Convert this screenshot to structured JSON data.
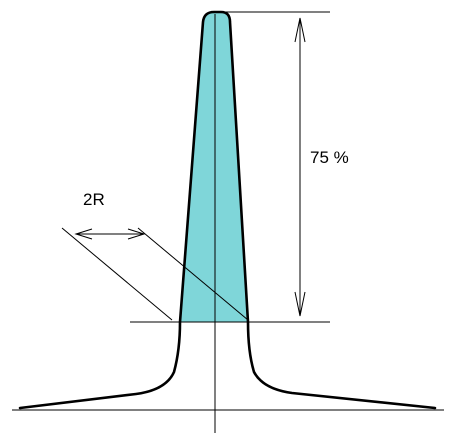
{
  "dimension_label": "75 %",
  "radius_label": "2R",
  "colors": {
    "fill": "#7fd6d9",
    "stroke": "#000000",
    "background": "#ffffff"
  }
}
